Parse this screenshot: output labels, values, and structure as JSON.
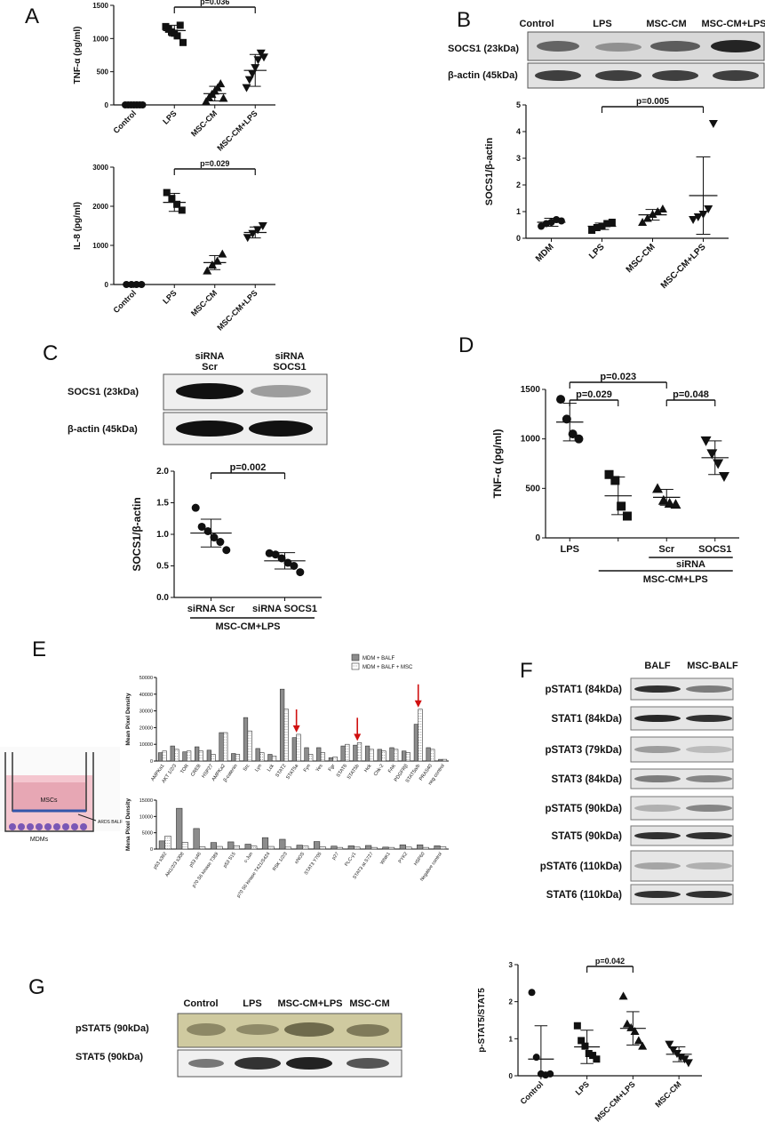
{
  "panels": {
    "A": {
      "label": "A"
    },
    "B": {
      "label": "B",
      "lanes": [
        "Control",
        "LPS",
        "MSC-CM",
        "MSC-CM+LPS"
      ],
      "rows": [
        "SOCS1 (23kDa)",
        "β-actin (45kDa)"
      ]
    },
    "C": {
      "label": "C",
      "lanes": [
        [
          "siRNA",
          "Scr"
        ],
        [
          "siRNA",
          "SOCS1"
        ]
      ],
      "rows": [
        "SOCS1 (23kDa)",
        "β-actin (45kDa)"
      ]
    },
    "D": {
      "label": "D"
    },
    "E": {
      "label": "E",
      "schematic": {
        "mscs": "MSCs",
        "mdms": "MDMs",
        "balf": "ARDS BALF"
      }
    },
    "F": {
      "label": "F",
      "lanes": [
        "BALF",
        "MSC-BALF"
      ],
      "rows": [
        "pSTAT1 (84kDa)",
        "STAT1 (84kDa)",
        "pSTAT3 (79kDa)",
        "STAT3 (84kDa)",
        "pSTAT5 (90kDa)",
        "STAT5 (90kDa)",
        "pSTAT6 (110kDa)",
        "STAT6 (110kDa)"
      ]
    },
    "G": {
      "label": "G",
      "lanes": [
        "Control",
        "LPS",
        "MSC-CM+LPS",
        "MSC-CM"
      ],
      "rows": [
        "pSTAT5 (90kDa)",
        "STAT5 (90kDa)"
      ]
    }
  },
  "chart_data": [
    {
      "id": "A1",
      "type": "scatter",
      "ylabel": "TNF-α (pg/ml)",
      "ylim": [
        0,
        1500
      ],
      "yticks": [
        0,
        500,
        1000,
        1500
      ],
      "categories": [
        "Control",
        "LPS",
        "MSC-CM",
        "MSC-CM+LPS"
      ],
      "markers": [
        "circle",
        "square",
        "triangle",
        "triangle-down"
      ],
      "groups": [
        {
          "mean": 0,
          "sd": 0,
          "points": [
            0,
            0,
            0,
            0,
            0,
            0,
            0
          ]
        },
        {
          "mean": 1120,
          "sd": 80,
          "points": [
            1180,
            1140,
            1100,
            1080,
            1040,
            1200,
            940
          ]
        },
        {
          "mean": 170,
          "sd": 110,
          "points": [
            50,
            110,
            160,
            210,
            260,
            320,
            100
          ]
        },
        {
          "mean": 520,
          "sd": 240,
          "points": [
            260,
            380,
            470,
            560,
            680,
            780,
            720
          ]
        }
      ],
      "comparisons": [
        {
          "from": 1,
          "to": 3,
          "label": "p=0.036"
        }
      ]
    },
    {
      "id": "A2",
      "type": "scatter",
      "ylabel": "IL-8 (pg/ml)",
      "ylim": [
        0,
        3000
      ],
      "yticks": [
        0,
        1000,
        2000,
        3000
      ],
      "categories": [
        "Control",
        "LPS",
        "MSC-CM",
        "MSC-CM+LPS"
      ],
      "markers": [
        "circle",
        "square",
        "triangle",
        "triangle-down"
      ],
      "groups": [
        {
          "mean": 0,
          "sd": 0,
          "points": [
            0,
            0,
            0,
            0
          ]
        },
        {
          "mean": 2100,
          "sd": 230,
          "points": [
            2350,
            2200,
            2050,
            1900
          ]
        },
        {
          "mean": 560,
          "sd": 180,
          "points": [
            350,
            500,
            600,
            780
          ]
        },
        {
          "mean": 1330,
          "sd": 140,
          "points": [
            1200,
            1300,
            1400,
            1500
          ]
        }
      ],
      "comparisons": [
        {
          "from": 1,
          "to": 3,
          "label": "p=0.029"
        }
      ]
    },
    {
      "id": "B",
      "type": "scatter",
      "ylabel": "SOCS1/β-actin",
      "ylim": [
        0,
        5
      ],
      "yticks": [
        0,
        1,
        2,
        3,
        4,
        5
      ],
      "categories": [
        "MDM",
        "LPS",
        "MSC-CM",
        "MSC-CM+LPS"
      ],
      "markers": [
        "circle",
        "square",
        "triangle",
        "triangle-down"
      ],
      "groups": [
        {
          "mean": 0.6,
          "sd": 0.15,
          "points": [
            0.45,
            0.55,
            0.6,
            0.7,
            0.65
          ]
        },
        {
          "mean": 0.45,
          "sd": 0.12,
          "points": [
            0.3,
            0.4,
            0.45,
            0.55,
            0.6
          ]
        },
        {
          "mean": 0.88,
          "sd": 0.2,
          "points": [
            0.6,
            0.75,
            0.9,
            1.0,
            1.1
          ]
        },
        {
          "mean": 1.6,
          "sd": 1.45,
          "points": [
            0.7,
            0.8,
            0.9,
            1.1,
            4.3
          ]
        }
      ],
      "comparisons": [
        {
          "from": 1,
          "to": 3,
          "label": "p=0.005"
        }
      ]
    },
    {
      "id": "C",
      "type": "scatter",
      "ylabel": "SOCS1/β-actin",
      "ylim": [
        0,
        2.0
      ],
      "yticks": [
        0.0,
        0.5,
        1.0,
        1.5,
        2.0
      ],
      "categories": [
        "siRNA Scr",
        "siRNA SOCS1"
      ],
      "group_label": "MSC-CM+LPS",
      "markers": [
        "circle",
        "circle"
      ],
      "groups": [
        {
          "mean": 1.02,
          "sd": 0.22,
          "points": [
            1.42,
            1.12,
            1.05,
            0.95,
            0.88,
            0.75
          ]
        },
        {
          "mean": 0.58,
          "sd": 0.13,
          "points": [
            0.7,
            0.68,
            0.62,
            0.55,
            0.5,
            0.4
          ]
        }
      ],
      "comparisons": [
        {
          "from": 0,
          "to": 1,
          "label": "p=0.002"
        }
      ]
    },
    {
      "id": "D",
      "type": "scatter",
      "ylabel": "TNF-α (pg/ml)",
      "ylim": [
        0,
        1500
      ],
      "yticks": [
        0,
        500,
        1000,
        1500
      ],
      "categories": [
        "LPS",
        "",
        "Scr",
        "SOCS1"
      ],
      "sirna_label": "siRNA",
      "group_label": "MSC-CM+LPS",
      "markers": [
        "circle",
        "square",
        "triangle",
        "triangle-down"
      ],
      "groups": [
        {
          "mean": 1170,
          "sd": 190,
          "points": [
            1400,
            1200,
            1050,
            1000
          ]
        },
        {
          "mean": 425,
          "sd": 190,
          "points": [
            640,
            580,
            320,
            220
          ]
        },
        {
          "mean": 410,
          "sd": 80,
          "points": [
            500,
            380,
            350,
            340
          ]
        },
        {
          "mean": 810,
          "sd": 170,
          "points": [
            980,
            850,
            750,
            620
          ]
        }
      ],
      "comparisons": [
        {
          "from": 0,
          "to": 1,
          "label": "p=0.029",
          "row": 0
        },
        {
          "from": 0,
          "to": 2,
          "label": "p=0.023",
          "row": 1
        },
        {
          "from": 2,
          "to": 3,
          "label": "p=0.048",
          "row": 0
        }
      ]
    },
    {
      "id": "E1",
      "type": "bar",
      "ylabel": "Mean Pixel Density",
      "ylim": [
        0,
        50000
      ],
      "yticks": [
        0,
        10000,
        20000,
        30000,
        40000,
        50000
      ],
      "legend": [
        "MDM + BALF",
        "MDM + BALF + MSC"
      ],
      "categories": [
        "AMPKa1",
        "AKT 1/2/3",
        "TOR",
        "CREB",
        "HSP27",
        "AMPKa2",
        "β-catenin",
        "Src",
        "Lyn",
        "Lck",
        "STAT2",
        "STAT5a",
        "Fyn",
        "Yes",
        "Fgr",
        "STAT6",
        "STAT5b",
        "Hck",
        "Chk-2",
        "FAK",
        "PDGFRβ",
        "STAT5a/b",
        "PRAS40",
        "neg control"
      ],
      "series": [
        {
          "name": "MDM + BALF",
          "values": [
            5000,
            9000,
            5500,
            8500,
            6500,
            17000,
            4500,
            26000,
            7500,
            4000,
            43000,
            14000,
            8000,
            8000,
            2000,
            9000,
            9500,
            9000,
            7000,
            8000,
            6000,
            22000,
            8000,
            1000
          ]
        },
        {
          "name": "MDM + BALF + MSC",
          "values": [
            6000,
            7000,
            6000,
            6000,
            4000,
            17000,
            4000,
            18000,
            5000,
            3000,
            31000,
            16000,
            4000,
            5000,
            2500,
            10000,
            11000,
            7000,
            6000,
            7000,
            5000,
            31000,
            7000,
            1000
          ]
        }
      ],
      "arrows": [
        11,
        16,
        21
      ]
    },
    {
      "id": "E2",
      "type": "bar",
      "ylabel": "Mena Pixel Density",
      "ylim": [
        0,
        15000
      ],
      "yticks": [
        0,
        5000,
        10000,
        15000
      ],
      "categories": [
        "p53 s392",
        "Akt1/2/3 s308",
        "p53 s46",
        "p70 S6 kinase T389",
        "p53 S15",
        "c-Jun",
        "p70 S6 kinase T421/S424",
        "RSK 1/2/3",
        "eNOS",
        "STAT3 Y705",
        "p27",
        "PLC-γ1",
        "STAT3 at S727",
        "WNK1",
        "PYK2",
        "HSP60",
        "Negative control"
      ],
      "series": [
        {
          "name": "MDM + BALF",
          "values": [
            2500,
            12500,
            6300,
            2000,
            2200,
            1500,
            3500,
            3000,
            1200,
            2300,
            900,
            1000,
            1100,
            600,
            1300,
            1300,
            1000
          ]
        },
        {
          "name": "MDM + BALF + MSC",
          "values": [
            4000,
            2000,
            700,
            800,
            1000,
            900,
            800,
            600,
            900,
            700,
            500,
            600,
            500,
            500,
            600,
            500,
            700
          ]
        }
      ]
    },
    {
      "id": "G",
      "type": "scatter",
      "ylabel": "p-STAT5/STAT5",
      "ylim": [
        0,
        3
      ],
      "yticks": [
        0,
        1,
        2,
        3
      ],
      "categories": [
        "Control",
        "LPS",
        "MSC-CM+LPS",
        "MSC-CM"
      ],
      "markers": [
        "circle",
        "square",
        "triangle",
        "triangle-down"
      ],
      "groups": [
        {
          "mean": 0.45,
          "sd": 0.9,
          "points": [
            2.25,
            0.5,
            0.05,
            0.02,
            0.05
          ]
        },
        {
          "mean": 0.78,
          "sd": 0.45,
          "points": [
            1.35,
            0.95,
            0.8,
            0.6,
            0.55,
            0.45
          ]
        },
        {
          "mean": 1.28,
          "sd": 0.45,
          "points": [
            2.15,
            1.4,
            1.3,
            1.2,
            0.95,
            0.8
          ]
        },
        {
          "mean": 0.58,
          "sd": 0.2,
          "points": [
            0.85,
            0.7,
            0.6,
            0.5,
            0.45,
            0.35
          ]
        }
      ],
      "comparisons": [
        {
          "from": 1,
          "to": 2,
          "label": "p=0.042"
        }
      ]
    }
  ]
}
